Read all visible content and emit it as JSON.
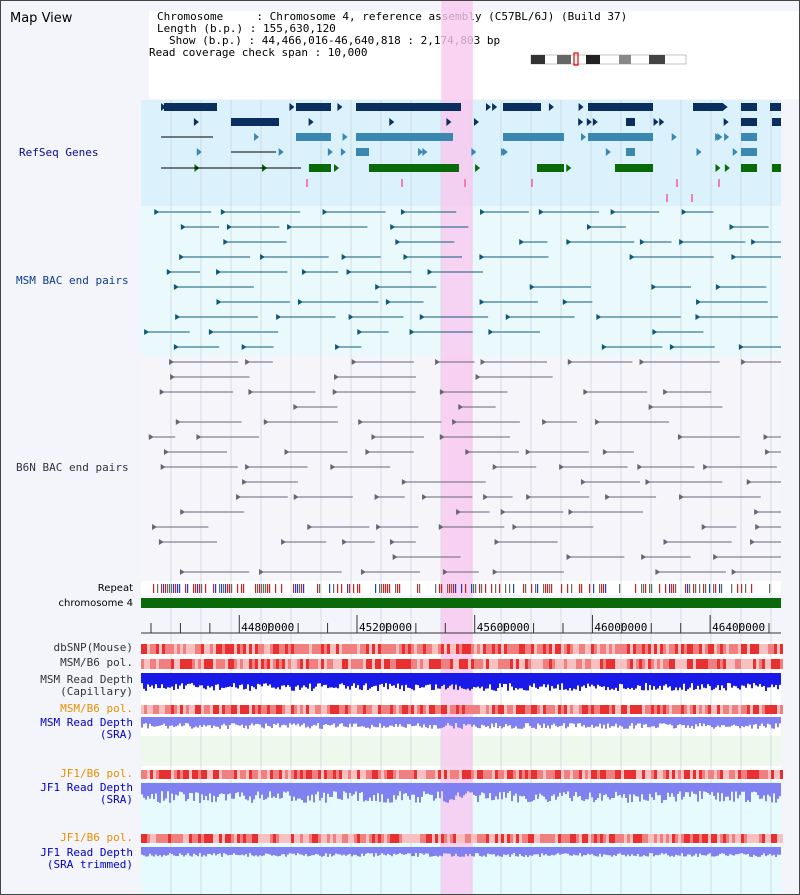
{
  "view_title": "Map View",
  "info": {
    "chromosome_line": "Chromosome     : Chromosome 4, reference assembly (C57BL/6J) (Build 37)",
    "length_line": "Length (b.p.) : 155,630,120",
    "show_line": "Show (b.p.) : 44,466,016-46,640,818 : 2,174,803 bp",
    "span_line": "Read coverage check span : 10,000"
  },
  "labels": {
    "refseq": "RefSeq Genes",
    "msm_bac": "MSM BAC end pairs",
    "b6n_bac": "B6N BAC end pairs",
    "repeat": "Repeat",
    "chromosome": "chromosome 4",
    "dbsnp": "dbSNP(Mouse)",
    "msm_b6_pol": "MSM/B6 pol.",
    "msm_depth_cap_1": "MSM Read Depth",
    "msm_depth_cap_2": "(Capillary)",
    "msm_b6_pol_2": "MSM/B6 pol.",
    "msm_depth_sra_1": "MSM Read Depth",
    "msm_depth_sra_2": "(SRA)",
    "jf1_b6_pol": "JF1/B6 pol.",
    "jf1_depth_sra_1": "JF1 Read Depth",
    "jf1_depth_sra_2": "(SRA)",
    "jf1_b6_pol_2": "JF1/B6 pol.",
    "jf1_depth_trim_1": "JF1 Read Depth",
    "jf1_depth_trim_2": "(SRA trimmed)"
  },
  "axis_ticks": [
    "44800000",
    "45200000",
    "45600000",
    "46000000",
    "46400000"
  ],
  "highlight_region_bp": [
    45500000,
    45580000
  ],
  "colors": {
    "label_blue": "#0a0a8c",
    "label_teal": "#0a3d8c",
    "label_orange": "#e89000",
    "refseq_dark": "#0a2f5e",
    "refseq_mid": "#3a88b0",
    "refseq_green": "#0a6a0a",
    "highlight": "#f9c8f0",
    "chromosome_green": "#0a6a0a"
  }
}
